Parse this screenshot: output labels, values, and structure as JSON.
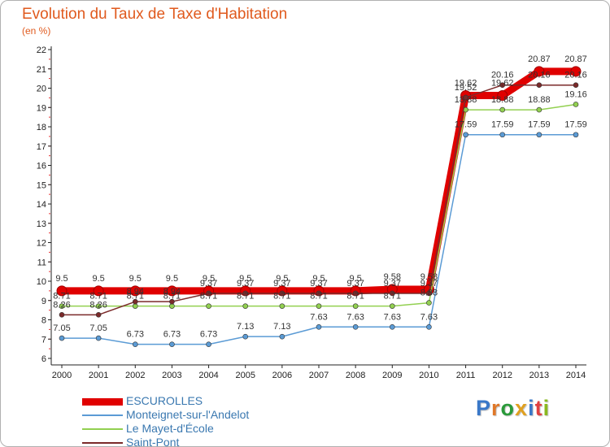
{
  "chart_data": {
    "type": "line",
    "title": "Evolution du Taux de Taxe d'Habitation",
    "unit_label": "(en %)",
    "xlabel": "",
    "ylabel": "",
    "x": [
      "2000",
      "2001",
      "2002",
      "2003",
      "2004",
      "2005",
      "2006",
      "2007",
      "2008",
      "2009",
      "2010",
      "2011",
      "2012",
      "2013",
      "2014"
    ],
    "yticks": [
      "6",
      "7",
      "8",
      "9",
      "10",
      "11",
      "12",
      "13",
      "14",
      "15",
      "16",
      "17",
      "18",
      "19",
      "20",
      "21",
      "22"
    ],
    "ylim": [
      6,
      22
    ],
    "grid": false,
    "series": [
      {
        "name": "ESCUROLLES",
        "color": "#e00000",
        "values": [
          9.5,
          9.5,
          9.5,
          9.5,
          9.5,
          9.5,
          9.5,
          9.5,
          9.5,
          9.58,
          9.58,
          19.62,
          19.62,
          20.87,
          20.87
        ]
      },
      {
        "name": "Monteignet-sur-l'Andelot",
        "color": "#5b9bd5",
        "values": [
          7.05,
          7.05,
          6.73,
          6.73,
          6.73,
          7.13,
          7.13,
          7.63,
          7.63,
          7.63,
          7.63,
          17.59,
          17.59,
          17.59,
          17.59
        ]
      },
      {
        "name": "Le Mayet-d'École",
        "color": "#92d050",
        "values": [
          8.71,
          8.71,
          8.71,
          8.71,
          8.71,
          8.71,
          8.71,
          8.71,
          8.71,
          8.71,
          8.88,
          18.88,
          18.88,
          18.88,
          19.16
        ]
      },
      {
        "name": "Saint-Pont",
        "color": "#7b2a2a",
        "values": [
          8.26,
          8.26,
          8.94,
          8.94,
          9.37,
          9.37,
          9.37,
          9.37,
          9.37,
          9.37,
          9.37,
          19.52,
          20.16,
          20.16,
          20.16
        ]
      }
    ],
    "legend_position": "bottom-left"
  },
  "branding": {
    "logo_letters": [
      "P",
      "r",
      "o",
      "x",
      "i",
      "t",
      "i"
    ],
    "logo_colors": [
      "#3a78c8",
      "#e07828",
      "#2a9a3a",
      "#e0a020",
      "#3a78c8",
      "#e04040",
      "#8ab820"
    ]
  }
}
